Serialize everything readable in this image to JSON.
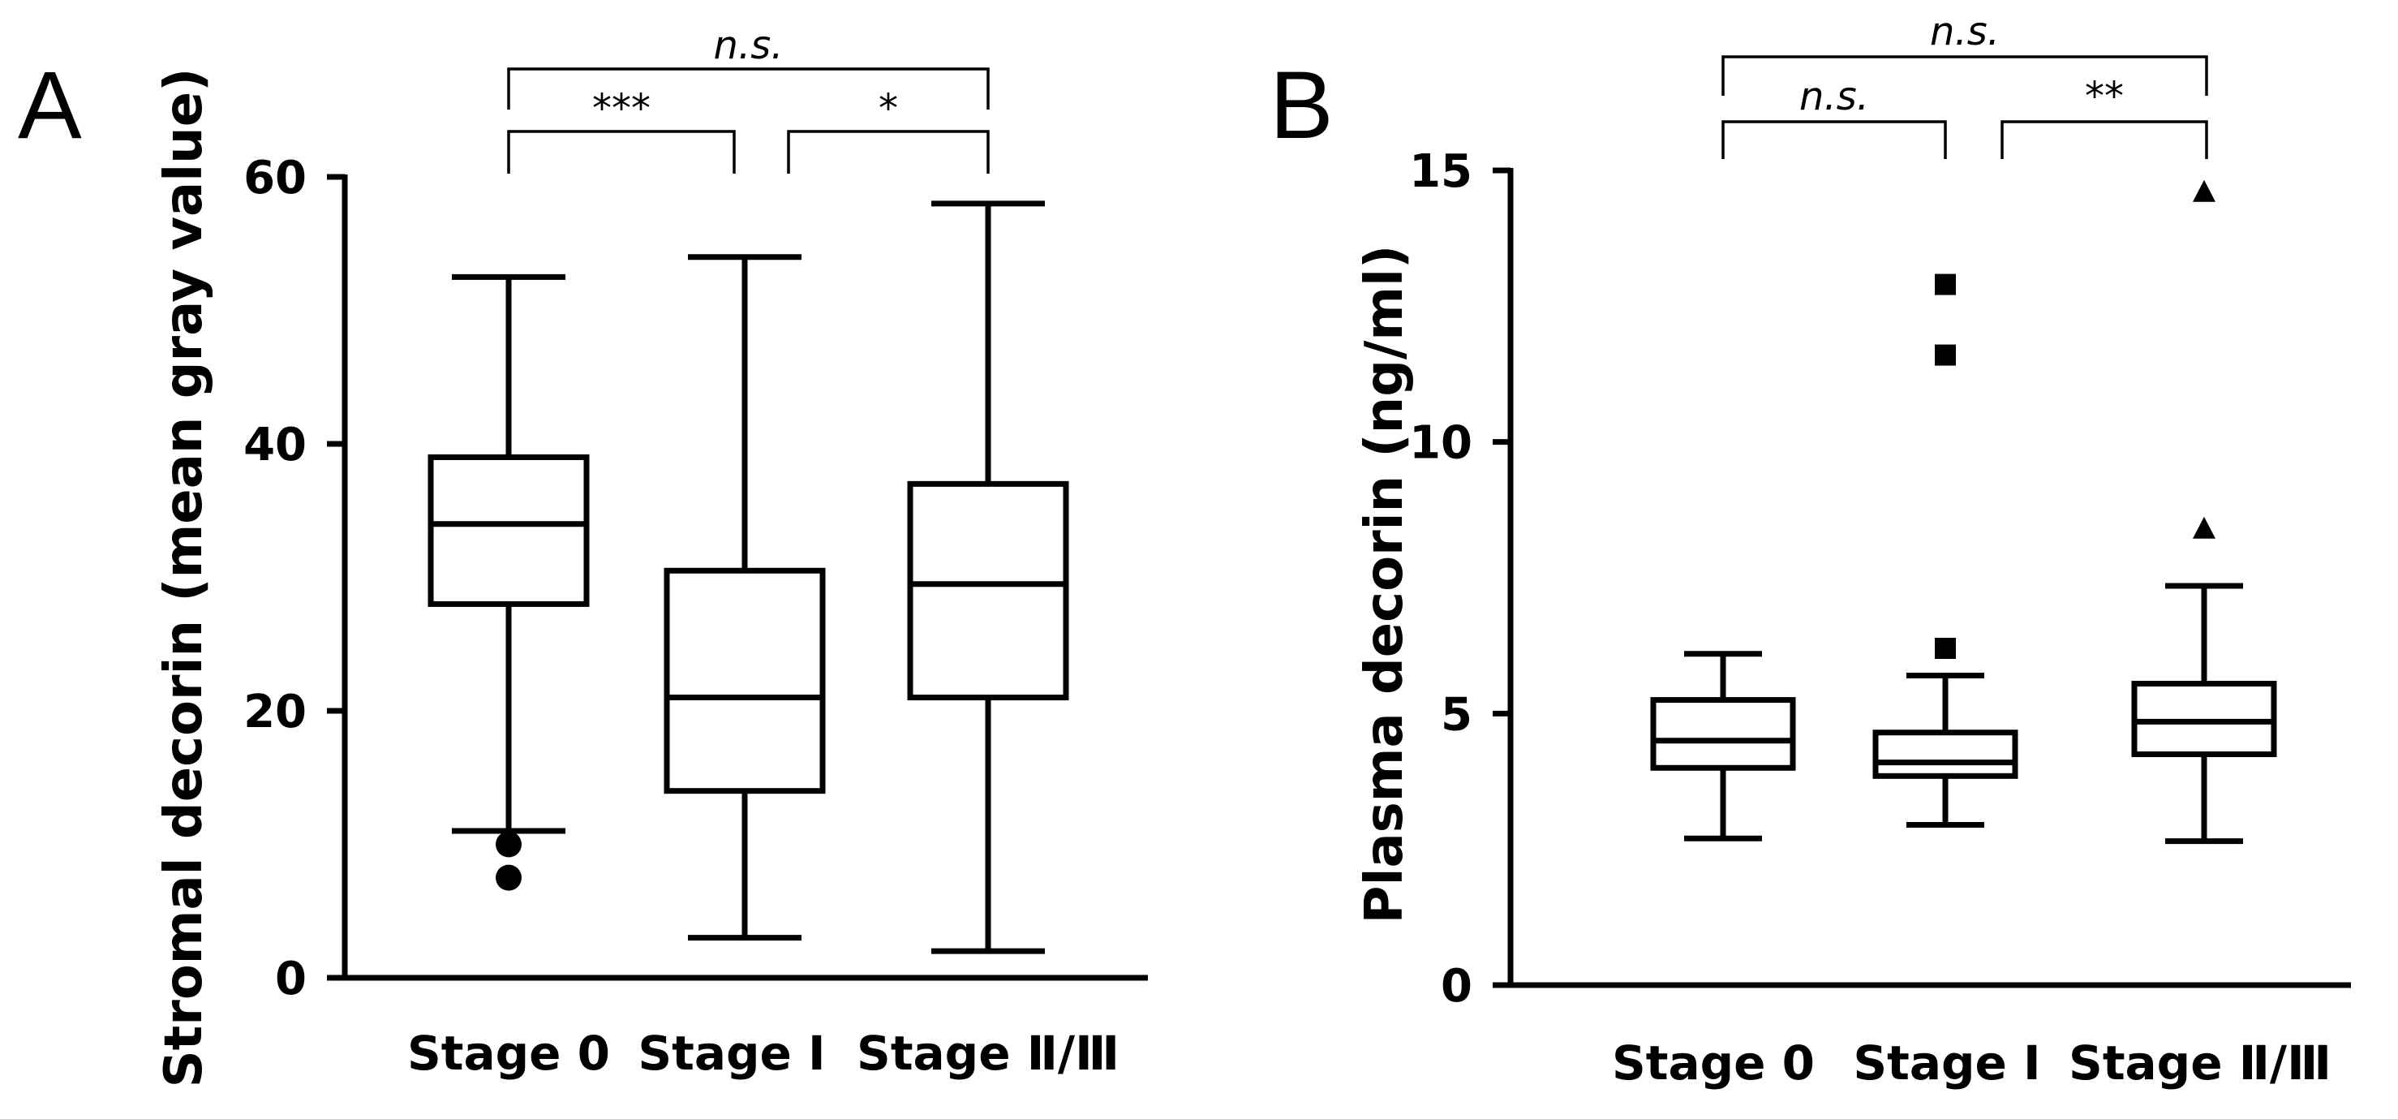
{
  "chart_data": [
    {
      "panel": "A",
      "type": "boxplot",
      "ylabel": "Stromal decorin (mean gray value)",
      "ylim": [
        0,
        60
      ],
      "yticks": [
        "0",
        "20",
        "40",
        "60"
      ],
      "categories": [
        "Stage 0",
        "Stage Ⅰ",
        "Stage Ⅱ/Ⅲ"
      ],
      "boxes": [
        {
          "category": "Stage 0",
          "whisker_low": 11,
          "q1": 28,
          "median": 34,
          "q3": 39,
          "whisker_high": 52.5
        },
        {
          "category": "Stage Ⅰ",
          "whisker_low": 3,
          "q1": 14,
          "median": 21,
          "q3": 30.5,
          "whisker_high": 54
        },
        {
          "category": "Stage Ⅱ/Ⅲ",
          "whisker_low": 2,
          "q1": 21,
          "median": 29.5,
          "q3": 37,
          "whisker_high": 58
        }
      ],
      "outliers": [
        {
          "category": "Stage 0",
          "value": 10,
          "marker": "circle"
        },
        {
          "category": "Stage 0",
          "value": 7.5,
          "marker": "circle"
        }
      ],
      "significance": [
        {
          "from": "Stage 0",
          "to": "Stage Ⅰ",
          "label": "***",
          "italic": false
        },
        {
          "from": "Stage Ⅰ",
          "to": "Stage Ⅱ/Ⅲ",
          "label": "*",
          "italic": false
        },
        {
          "from": "Stage 0",
          "to": "Stage Ⅱ/Ⅲ",
          "label": "n.s.",
          "italic": true
        }
      ]
    },
    {
      "panel": "B",
      "type": "boxplot",
      "ylabel": "Plasma decorin (ng/ml)",
      "ylim": [
        0,
        15
      ],
      "yticks": [
        "0",
        "5",
        "10",
        "15"
      ],
      "categories": [
        "Stage 0",
        "Stage Ⅰ",
        "Stage Ⅱ/Ⅲ"
      ],
      "boxes": [
        {
          "category": "Stage 0",
          "whisker_low": 2.7,
          "q1": 4.0,
          "median": 4.5,
          "q3": 5.25,
          "whisker_high": 6.1
        },
        {
          "category": "Stage Ⅰ",
          "whisker_low": 2.95,
          "q1": 3.85,
          "median": 4.1,
          "q3": 4.65,
          "whisker_high": 5.7
        },
        {
          "category": "Stage Ⅱ/Ⅲ",
          "whisker_low": 2.65,
          "q1": 4.25,
          "median": 4.85,
          "q3": 5.55,
          "whisker_high": 7.35
        }
      ],
      "outliers": [
        {
          "category": "Stage Ⅰ",
          "value": 12.9,
          "marker": "square"
        },
        {
          "category": "Stage Ⅰ",
          "value": 11.6,
          "marker": "square"
        },
        {
          "category": "Stage Ⅰ",
          "value": 6.2,
          "marker": "square"
        },
        {
          "category": "Stage Ⅱ/Ⅲ",
          "value": 14.6,
          "marker": "triangle"
        },
        {
          "category": "Stage Ⅱ/Ⅲ",
          "value": 8.4,
          "marker": "triangle"
        }
      ],
      "significance": [
        {
          "from": "Stage 0",
          "to": "Stage Ⅰ",
          "label": "n.s.",
          "italic": true
        },
        {
          "from": "Stage Ⅰ",
          "to": "Stage Ⅱ/Ⅲ",
          "label": "**",
          "italic": false
        },
        {
          "from": "Stage 0",
          "to": "Stage Ⅱ/Ⅲ",
          "label": "n.s.",
          "italic": true
        }
      ]
    }
  ]
}
